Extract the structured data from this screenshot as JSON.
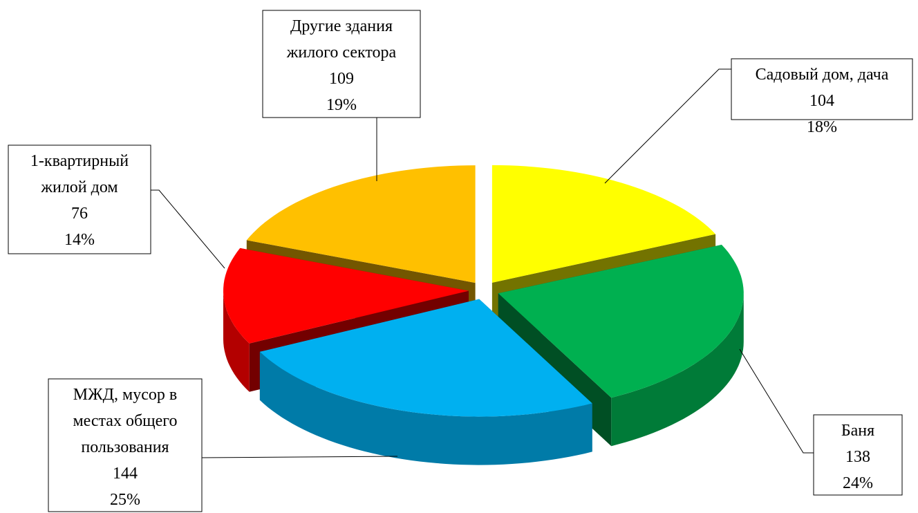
{
  "chart_data": {
    "type": "pie3d",
    "categories": [
      "Садовый дом, дача",
      "Баня",
      "МЖД, мусор в\nместах общего\nпользования",
      "1-квартирный\nжилой дом",
      "Другие здания\nжилого сектора"
    ],
    "values": [
      104,
      138,
      144,
      76,
      109
    ],
    "percent_labels": [
      "18%",
      "24%",
      "25%",
      "14%",
      "19%"
    ],
    "colors": [
      "#ffff00",
      "#00b050",
      "#00b0f0",
      "#ff0000",
      "#ffc000"
    ]
  }
}
